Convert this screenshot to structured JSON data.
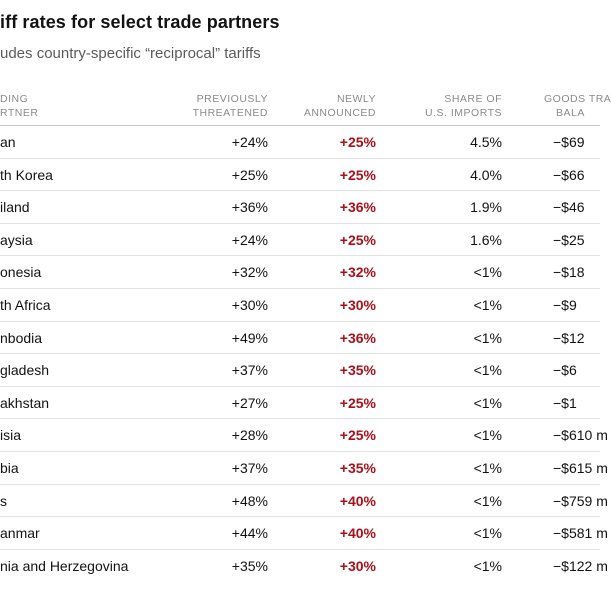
{
  "title": "iff rates for select trade partners",
  "subtitle": "udes country-specific “reciprocal” tariffs",
  "headers": {
    "country": [
      "DING",
      "RTNER"
    ],
    "previously": [
      "PREVIOUSLY",
      "THREATENED"
    ],
    "newly": [
      "NEWLY",
      "ANNOUNCED"
    ],
    "share": [
      "SHARE OF",
      "U.S. IMPORTS"
    ],
    "trade": [
      "GOODS TRA",
      "BALA"
    ]
  },
  "colors": {
    "newly_text": "#a8111a",
    "header_text": "#8a8a8a",
    "body_text": "#121212",
    "rule": "#e2e2e2"
  },
  "rows": [
    {
      "country": "an",
      "previously": "+24%",
      "newly": "+25%",
      "share": "4.5%",
      "trade": "−$69"
    },
    {
      "country": "th Korea",
      "previously": "+25%",
      "newly": "+25%",
      "share": "4.0%",
      "trade": "−$66"
    },
    {
      "country": "iland",
      "previously": "+36%",
      "newly": "+36%",
      "share": "1.9%",
      "trade": "−$46"
    },
    {
      "country": "aysia",
      "previously": "+24%",
      "newly": "+25%",
      "share": "1.6%",
      "trade": "−$25"
    },
    {
      "country": "onesia",
      "previously": "+32%",
      "newly": "+32%",
      "share": "<1%",
      "trade": "−$18"
    },
    {
      "country": "th Africa",
      "previously": "+30%",
      "newly": "+30%",
      "share": "<1%",
      "trade": "−$9"
    },
    {
      "country": "nbodia",
      "previously": "+49%",
      "newly": "+36%",
      "share": "<1%",
      "trade": "−$12"
    },
    {
      "country": "gladesh",
      "previously": "+37%",
      "newly": "+35%",
      "share": "<1%",
      "trade": "−$6"
    },
    {
      "country": "akhstan",
      "previously": "+27%",
      "newly": "+25%",
      "share": "<1%",
      "trade": "−$1"
    },
    {
      "country": "isia",
      "previously": "+28%",
      "newly": "+25%",
      "share": "<1%",
      "trade": "−$610 m"
    },
    {
      "country": "bia",
      "previously": "+37%",
      "newly": "+35%",
      "share": "<1%",
      "trade": "−$615 m"
    },
    {
      "country": "s",
      "previously": "+48%",
      "newly": "+40%",
      "share": "<1%",
      "trade": "−$759 m"
    },
    {
      "country": "anmar",
      "previously": "+44%",
      "newly": "+40%",
      "share": "<1%",
      "trade": "−$581 m"
    },
    {
      "country": "nia and Herzegovina",
      "previously": "+35%",
      "newly": "+30%",
      "share": "<1%",
      "trade": "−$122 m"
    }
  ]
}
